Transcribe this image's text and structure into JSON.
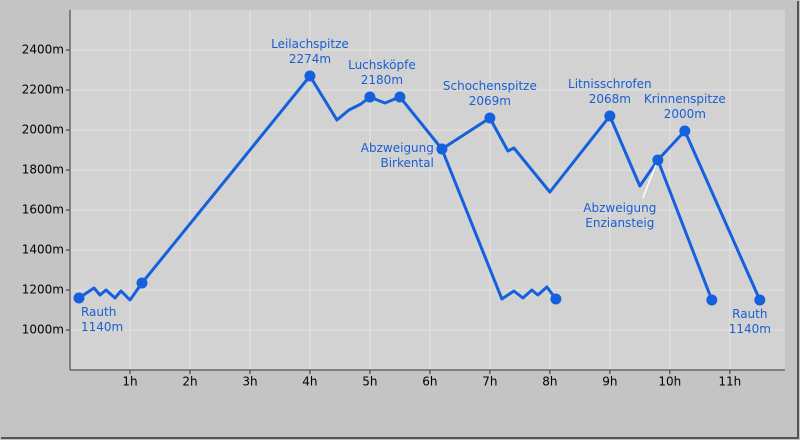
{
  "chart_data": {
    "type": "line",
    "xlim": [
      0,
      11.92
    ],
    "ylim": [
      800,
      2600
    ],
    "xticks": [
      {
        "value": 1,
        "label": "1h"
      },
      {
        "value": 2,
        "label": "2h"
      },
      {
        "value": 3,
        "label": "3h"
      },
      {
        "value": 4,
        "label": "4h"
      },
      {
        "value": 5,
        "label": "5h"
      },
      {
        "value": 6,
        "label": "6h"
      },
      {
        "value": 7,
        "label": "7h"
      },
      {
        "value": 8,
        "label": "8h"
      },
      {
        "value": 9,
        "label": "9h"
      },
      {
        "value": 10,
        "label": "10h"
      },
      {
        "value": 11,
        "label": "11h"
      }
    ],
    "yticks": [
      {
        "value": 1000,
        "label": "1000m"
      },
      {
        "value": 1200,
        "label": "1200m"
      },
      {
        "value": 1400,
        "label": "1400m"
      },
      {
        "value": 1600,
        "label": "1600m"
      },
      {
        "value": 1800,
        "label": "1800m"
      },
      {
        "value": 2000,
        "label": "2000m"
      },
      {
        "value": 2200,
        "label": "2200m"
      },
      {
        "value": 2400,
        "label": "2400m"
      }
    ],
    "grid": true,
    "series": [
      {
        "color": "#1560dc",
        "x": [
          0.15,
          0.4,
          0.5,
          0.6,
          0.75,
          0.85,
          1.0,
          1.2,
          4,
          4.45,
          4.65,
          4.85,
          5,
          5.25,
          5.5,
          6.2
        ],
        "values": [
          1160,
          1210,
          1175,
          1200,
          1160,
          1195,
          1150,
          1235,
          2270,
          2050,
          2100,
          2130,
          2165,
          2135,
          2165,
          1905
        ]
      },
      {
        "color": "#1560dc",
        "x": [
          6.2,
          7.2,
          7.4,
          7.55,
          7.7,
          7.8,
          7.95,
          8.1
        ],
        "values": [
          1905,
          1155,
          1195,
          1160,
          1200,
          1175,
          1215,
          1155
        ]
      },
      {
        "color": "#1560dc",
        "x": [
          6.2,
          7,
          7.3,
          7.4,
          8,
          9,
          9.5,
          9.8,
          10.25,
          11.5
        ],
        "values": [
          1905,
          2060,
          1895,
          1910,
          1690,
          2070,
          1720,
          1850,
          1995,
          1150
        ]
      },
      {
        "color": "#1560dc",
        "x": [
          9.8,
          10.7
        ],
        "values": [
          1850,
          1150
        ]
      }
    ],
    "points": {
      "color": "#1560dc",
      "x": [
        0.15,
        1.2,
        4,
        5,
        5.5,
        6.2,
        7,
        8.1,
        9,
        9.8,
        10.25,
        10.7,
        11.5
      ],
      "values": [
        1160,
        1235,
        2270,
        2165,
        2165,
        1905,
        2060,
        1155,
        2070,
        1850,
        1995,
        1150,
        1150
      ]
    },
    "annotations": [
      {
        "text": [
          "Rauth",
          "1140m"
        ],
        "x": 0.15,
        "y": 1160,
        "placement": "below-right"
      },
      {
        "text": [
          "Leilachspitze",
          "2274m"
        ],
        "x": 4,
        "y": 2270,
        "placement": "above"
      },
      {
        "text": [
          "Luchsköpfe",
          "2180m"
        ],
        "x": 5.2,
        "y": 2165,
        "placement": "above"
      },
      {
        "text": [
          "Abzweigung",
          "Birkental"
        ],
        "x": 6.2,
        "y": 1905,
        "placement": "left"
      },
      {
        "text": [
          "Schochenspitze",
          "2069m"
        ],
        "x": 7,
        "y": 2060,
        "placement": "above"
      },
      {
        "text": [
          "Litnisschrofen",
          "2068m"
        ],
        "x": 9,
        "y": 2070,
        "placement": "above"
      },
      {
        "text": [
          "Krinnenspitze",
          "2000m"
        ],
        "x": 10.25,
        "y": 1995,
        "placement": "above"
      },
      {
        "text": [
          "Abzweigung",
          "Enziansteig"
        ],
        "x": 9.8,
        "y": 1850,
        "placement": "below-left"
      },
      {
        "text": [
          "Rauth",
          "1140m"
        ],
        "x": 11.5,
        "y": 1150,
        "placement": "below"
      }
    ]
  }
}
